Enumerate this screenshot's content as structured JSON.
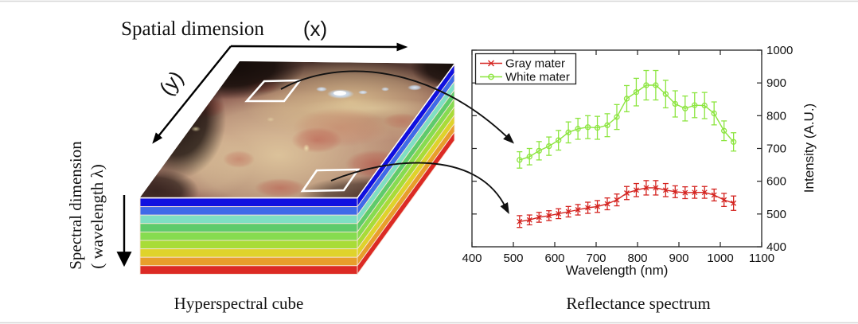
{
  "figure": {
    "cube": {
      "spatial_dimension_label": "Spatial dimension",
      "x_axis_label": "(x)",
      "y_axis_label": "(y)",
      "spectral_dimension_label": "Spectral dimension",
      "wavelength_label": "( wavelength λ)",
      "caption": "Hyperspectral cube",
      "layer_colors": [
        "#1010e0",
        "#3f6ae8",
        "#7fdfc3",
        "#5ecb6b",
        "#86dc50",
        "#a8dc38",
        "#dfd32b",
        "#e89e2b",
        "#dc2a24"
      ],
      "sample_regions": [
        "white-mater-region",
        "gray-mater-region"
      ]
    },
    "spectrum": {
      "caption": "Reflectance spectrum"
    }
  },
  "chart_data": {
    "type": "line",
    "title": "",
    "xlabel": "Wavelength (nm)",
    "ylabel": "Intensity (A.U.)",
    "xlim": [
      400,
      1100
    ],
    "ylim": [
      400,
      1000
    ],
    "xticks": [
      400,
      500,
      600,
      700,
      800,
      900,
      1000,
      1100
    ],
    "yticks": [
      400,
      500,
      600,
      700,
      800,
      900,
      1000
    ],
    "y_axis_location": "right",
    "legend_position": "top-left",
    "grid": false,
    "x": [
      515,
      539,
      562,
      586,
      609,
      633,
      656,
      680,
      703,
      727,
      750,
      774,
      797,
      821,
      844,
      868,
      891,
      915,
      938,
      962,
      985,
      1009,
      1032
    ],
    "series": [
      {
        "name": "Gray mater",
        "color": "#d42420",
        "marker": "x",
        "values": [
          477,
          482,
          490,
          495,
          501,
          507,
          513,
          519,
          523,
          531,
          543,
          564,
          573,
          580,
          580,
          573,
          568,
          565,
          566,
          566,
          558,
          543,
          533
        ],
        "errors": [
          18,
          15,
          15,
          15,
          15,
          16,
          16,
          17,
          18,
          18,
          18,
          20,
          20,
          22,
          22,
          20,
          18,
          18,
          18,
          18,
          18,
          20,
          22
        ]
      },
      {
        "name": "White mater",
        "color": "#8ce53f",
        "marker": "o",
        "values": [
          665,
          675,
          693,
          707,
          725,
          749,
          760,
          765,
          763,
          771,
          796,
          852,
          872,
          893,
          893,
          866,
          836,
          822,
          832,
          831,
          807,
          754,
          720
        ],
        "errors": [
          25,
          25,
          28,
          28,
          30,
          32,
          32,
          35,
          35,
          35,
          38,
          40,
          42,
          45,
          45,
          42,
          40,
          38,
          38,
          40,
          35,
          30,
          28
        ]
      }
    ]
  }
}
